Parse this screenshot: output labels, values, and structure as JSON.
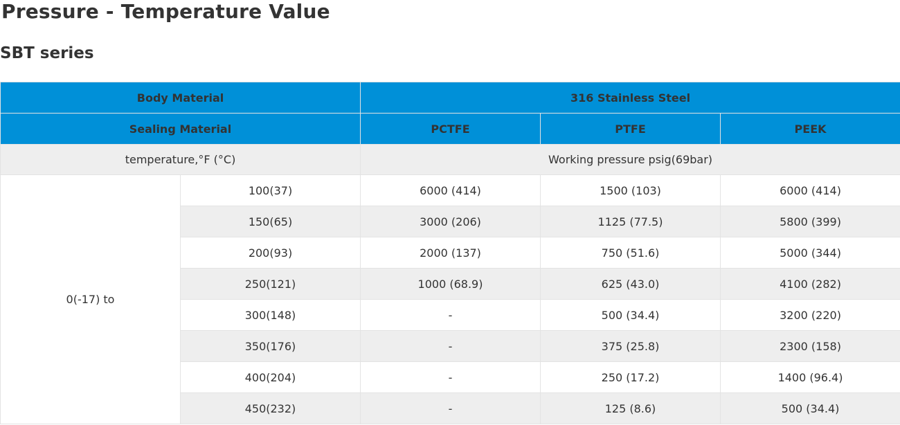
{
  "title": "Pressure - Temperature Value",
  "subtitle": "SBT series",
  "table": {
    "body_material_label": "Body Material",
    "body_material_value": "316 Stainless Steel",
    "sealing_material_label": "Sealing Material",
    "sealing_materials": [
      "PCTFE",
      "PTFE",
      "PEEK"
    ],
    "temperature_label": "temperature,°F (°C)",
    "pressure_label": "Working pressure psig(69bar)",
    "range_start": "0(-17)  to",
    "rows": [
      {
        "temp": "100(37)",
        "pctfe": "6000 (414)",
        "ptfe": "1500 (103)",
        "peek": "6000 (414)"
      },
      {
        "temp": "150(65)",
        "pctfe": "3000 (206)",
        "ptfe": "1125 (77.5)",
        "peek": "5800 (399)"
      },
      {
        "temp": "200(93)",
        "pctfe": "2000 (137)",
        "ptfe": "750 (51.6)",
        "peek": "5000 (344)"
      },
      {
        "temp": "250(121)",
        "pctfe": "1000 (68.9)",
        "ptfe": "625 (43.0)",
        "peek": "4100 (282)"
      },
      {
        "temp": "300(148)",
        "pctfe": "-",
        "ptfe": "500 (34.4)",
        "peek": "3200 (220)"
      },
      {
        "temp": "350(176)",
        "pctfe": "-",
        "ptfe": "375 (25.8)",
        "peek": "2300 (158)"
      },
      {
        "temp": "400(204)",
        "pctfe": "-",
        "ptfe": "250 (17.2)",
        "peek": "1400 (96.4)"
      },
      {
        "temp": "450(232)",
        "pctfe": "-",
        "ptfe": "125 (8.6)",
        "peek": "500 (34.4)"
      }
    ]
  }
}
